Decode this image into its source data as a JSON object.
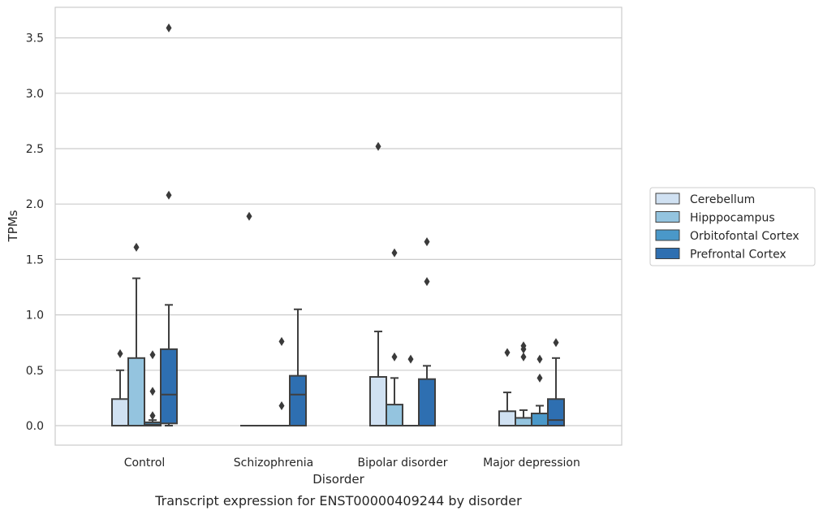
{
  "chart_data": {
    "type": "boxplot",
    "caption": "Transcript expression for ENST00000409244 by disorder",
    "xlabel": "Disorder",
    "ylabel": "TPMs",
    "ylim": [
      -0.17,
      3.73
    ],
    "yticks": [
      0.0,
      0.5,
      1.0,
      1.5,
      2.0,
      2.5,
      3.0,
      3.5
    ],
    "ytick_labels": [
      "0.0",
      "0.5",
      "1.0",
      "1.5",
      "2.0",
      "2.5",
      "3.0",
      "3.5"
    ],
    "grid": true,
    "legend_position": "right",
    "categories": [
      "Control",
      "Schizophrenia",
      "Bipolar disorder",
      "Major depression"
    ],
    "series": [
      {
        "name": "Cerebellum",
        "color": "#d0e1f2",
        "boxes": [
          {
            "q1": 0.0,
            "median": 0.0,
            "q3": 0.24,
            "whisker_low": 0.0,
            "whisker_high": 0.5,
            "outliers": [
              0.65
            ]
          },
          {
            "q1": 0.0,
            "median": 0.0,
            "q3": 0.0,
            "whisker_low": 0.0,
            "whisker_high": 0.0,
            "outliers": [
              1.89
            ]
          },
          {
            "q1": 0.0,
            "median": 0.0,
            "q3": 0.44,
            "whisker_low": 0.0,
            "whisker_high": 0.85,
            "outliers": [
              2.52
            ]
          },
          {
            "q1": 0.0,
            "median": 0.0,
            "q3": 0.13,
            "whisker_low": 0.0,
            "whisker_high": 0.3,
            "outliers": [
              0.66
            ]
          }
        ]
      },
      {
        "name": "Hipppocampus",
        "color": "#94c4df",
        "boxes": [
          {
            "q1": 0.0,
            "median": 0.0,
            "q3": 0.61,
            "whisker_low": 0.0,
            "whisker_high": 1.33,
            "outliers": [
              1.61
            ]
          },
          {
            "q1": 0.0,
            "median": 0.0,
            "q3": 0.0,
            "whisker_low": 0.0,
            "whisker_high": 0.0,
            "outliers": []
          },
          {
            "q1": 0.0,
            "median": 0.0,
            "q3": 0.19,
            "whisker_low": 0.0,
            "whisker_high": 0.43,
            "outliers": [
              0.62,
              1.56
            ]
          },
          {
            "q1": 0.0,
            "median": 0.0,
            "q3": 0.07,
            "whisker_low": 0.0,
            "whisker_high": 0.14,
            "outliers": [
              0.62,
              0.69,
              0.72
            ]
          }
        ]
      },
      {
        "name": "Orbitofontal Cortex",
        "color": "#4a98c9",
        "boxes": [
          {
            "q1": 0.0,
            "median": 0.01,
            "q3": 0.03,
            "whisker_low": 0.0,
            "whisker_high": 0.05,
            "outliers": [
              0.09,
              0.31,
              0.64
            ]
          },
          {
            "q1": 0.0,
            "median": 0.0,
            "q3": 0.0,
            "whisker_low": 0.0,
            "whisker_high": 0.0,
            "outliers": [
              0.18,
              0.76
            ]
          },
          {
            "q1": 0.0,
            "median": 0.0,
            "q3": 0.0,
            "whisker_low": 0.0,
            "whisker_high": 0.0,
            "outliers": [
              0.6
            ]
          },
          {
            "q1": 0.0,
            "median": 0.0,
            "q3": 0.11,
            "whisker_low": 0.0,
            "whisker_high": 0.18,
            "outliers": [
              0.43,
              0.6
            ]
          }
        ]
      },
      {
        "name": "Prefrontal Cortex",
        "color": "#2e6fb1",
        "boxes": [
          {
            "q1": 0.02,
            "median": 0.28,
            "q3": 0.69,
            "whisker_low": 0.0,
            "whisker_high": 1.09,
            "outliers": [
              2.08,
              3.59
            ]
          },
          {
            "q1": 0.0,
            "median": 0.28,
            "q3": 0.45,
            "whisker_low": 0.0,
            "whisker_high": 1.05,
            "outliers": []
          },
          {
            "q1": 0.0,
            "median": 0.0,
            "q3": 0.42,
            "whisker_low": 0.0,
            "whisker_high": 0.54,
            "outliers": [
              1.3,
              1.66
            ]
          },
          {
            "q1": 0.0,
            "median": 0.05,
            "q3": 0.24,
            "whisker_low": 0.0,
            "whisker_high": 0.61,
            "outliers": [
              0.75
            ]
          }
        ]
      }
    ]
  }
}
